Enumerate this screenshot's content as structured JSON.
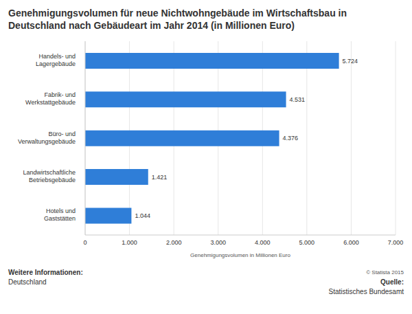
{
  "chart_data": {
    "type": "bar",
    "orientation": "horizontal",
    "title": "Genehmigungsvolumen für neue Nichtwohngebäude im Wirtschaftsbau in Deutschland nach Gebäudeart im Jahr 2014 (in Millionen Euro)",
    "xlabel": "Genehmigungsvolumen in Millionen Euro",
    "categories": [
      "Handels- und\nLagergebäude",
      "Fabrik- und\nWerkstattgebäude",
      "Büro- und\nVerwaltungsgebäude",
      "Landwirtschaftliche\nBetriebsgebäude",
      "Hotels und\nGaststätten"
    ],
    "values": [
      5724,
      4531,
      4376,
      1421,
      1044
    ],
    "value_labels": [
      "5.724",
      "4.531",
      "4.376",
      "1.421",
      "1.044"
    ],
    "data_labels": true,
    "color": "#2f7ed8",
    "xlim": [
      0,
      7000
    ],
    "xticks": [
      0,
      {
        "value": 1000,
        "label": "1.000"
      },
      {
        "value": 2000,
        "label": "2.000"
      },
      {
        "value": 3000,
        "label": "3.000"
      },
      {
        "value": 4000,
        "label": "4.000"
      },
      {
        "value": 5000,
        "label": "5.000"
      },
      {
        "value": 6000,
        "label": "6.000"
      },
      {
        "value": 7000,
        "label": "7.000"
      }
    ],
    "grid": true,
    "annotations": [
      "Weitere Informationen:",
      "Deutschland",
      "© Statista 2015",
      "Quelle:",
      "Statistisches Bundesamt"
    ]
  }
}
